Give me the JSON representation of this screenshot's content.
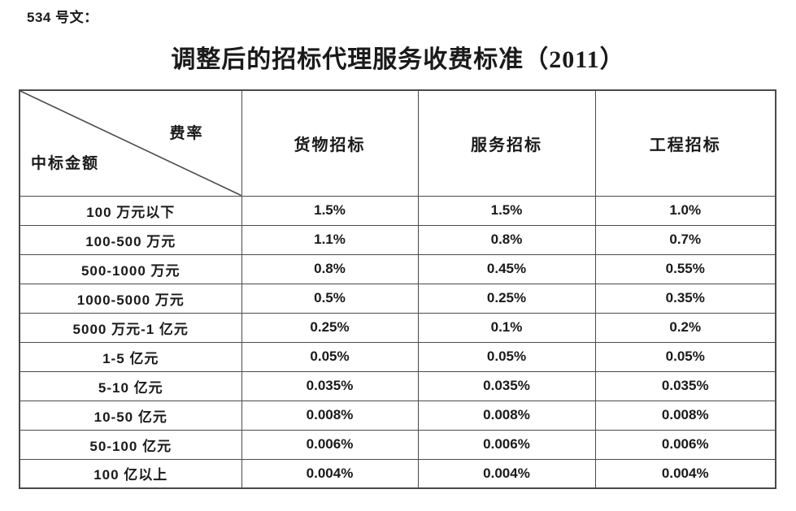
{
  "page": {
    "doc_label": "534 号文：",
    "title": "调整后的招标代理服务收费标准（2011）"
  },
  "colors": {
    "text": "#1a1a1a",
    "table_border": "#4a4a4a",
    "background": "#ffffff"
  },
  "table": {
    "corner": {
      "top_right_label": "费率",
      "bottom_left_label": "中标金额"
    },
    "columns": [
      "货物招标",
      "服务招标",
      "工程招标"
    ],
    "rows": [
      {
        "label": "100 万元以下",
        "values": [
          "1.5%",
          "1.5%",
          "1.0%"
        ]
      },
      {
        "label": "100-500 万元",
        "values": [
          "1.1%",
          "0.8%",
          "0.7%"
        ]
      },
      {
        "label": "500-1000 万元",
        "values": [
          "0.8%",
          "0.45%",
          "0.55%"
        ]
      },
      {
        "label": "1000-5000 万元",
        "values": [
          "0.5%",
          "0.25%",
          "0.35%"
        ]
      },
      {
        "label": "5000 万元-1 亿元",
        "values": [
          "0.25%",
          "0.1%",
          "0.2%"
        ]
      },
      {
        "label": "1-5 亿元",
        "values": [
          "0.05%",
          "0.05%",
          "0.05%"
        ]
      },
      {
        "label": "5-10 亿元",
        "values": [
          "0.035%",
          "0.035%",
          "0.035%"
        ]
      },
      {
        "label": "10-50 亿元",
        "values": [
          "0.008%",
          "0.008%",
          "0.008%"
        ]
      },
      {
        "label": "50-100 亿元",
        "values": [
          "0.006%",
          "0.006%",
          "0.006%"
        ]
      },
      {
        "label": "100 亿以上",
        "values": [
          "0.004%",
          "0.004%",
          "0.004%"
        ]
      }
    ]
  }
}
